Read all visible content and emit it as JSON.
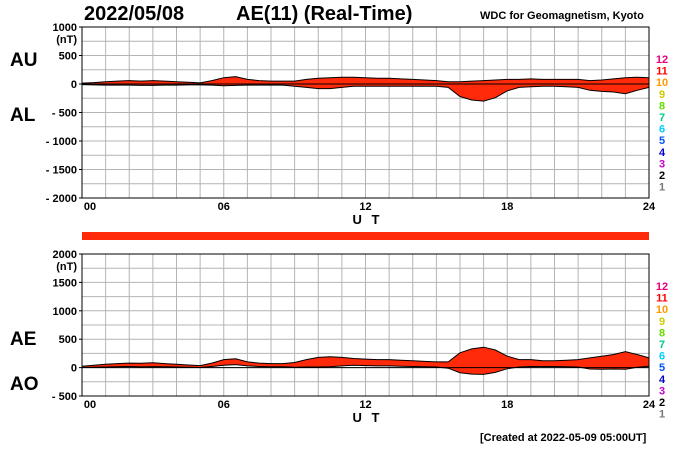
{
  "header": {
    "date": "2022/05/08",
    "title": "AE(11) (Real-Time)",
    "source": "WDC for Geomagnetism, Kyoto",
    "created": "[Created at 2022-05-09 05:00UT]"
  },
  "colors": {
    "fill": "#ff2a0a",
    "outline": "#000000",
    "grid": "#b4b4b4",
    "station_legend": [
      "#e6007e",
      "#ff0000",
      "#ff9900",
      "#cccc00",
      "#66dd00",
      "#00cc88",
      "#00ccff",
      "#0055ff",
      "#0000cc",
      "#cc00cc",
      "#000000",
      "#777777",
      "#cccccc"
    ]
  },
  "legend_stations": [
    "12",
    "11",
    "10",
    "9",
    "8",
    "7",
    "6",
    "5",
    "4",
    "3",
    "2",
    "1"
  ],
  "chart_data": [
    {
      "type": "area",
      "panel": "AU/AL",
      "series_labels": [
        "AU",
        "AL"
      ],
      "y_unit": "(nT)",
      "ylim": [
        -2000,
        1000
      ],
      "yticks": [
        1000,
        500,
        0,
        -500,
        -1000,
        -1500,
        -2000
      ],
      "ytick_labels": [
        "1000",
        "500",
        "0",
        "- 500",
        "- 1000",
        "- 1500",
        "- 2000"
      ],
      "xlim": [
        0,
        24
      ],
      "xticks": [
        0,
        6,
        12,
        18,
        24
      ],
      "xtick_labels": [
        "00",
        "06",
        "12",
        "18",
        "24"
      ],
      "xlabel": "U T",
      "grid": true,
      "x": [
        0,
        0.5,
        1,
        1.5,
        2,
        2.5,
        3,
        3.5,
        4,
        4.5,
        5,
        5.5,
        6,
        6.5,
        7,
        7.5,
        8,
        8.5,
        9,
        9.5,
        10,
        10.5,
        11,
        11.5,
        12,
        12.5,
        13,
        13.5,
        14,
        14.5,
        15,
        15.5,
        16,
        16.5,
        17,
        17.5,
        18,
        18.5,
        19,
        19.5,
        20,
        20.5,
        21,
        21.5,
        22,
        22.5,
        23,
        23.5,
        24
      ],
      "upper": [
        15,
        25,
        40,
        50,
        60,
        50,
        60,
        50,
        40,
        30,
        20,
        60,
        110,
        130,
        80,
        60,
        50,
        50,
        50,
        80,
        100,
        110,
        120,
        120,
        110,
        100,
        100,
        90,
        80,
        70,
        60,
        40,
        40,
        50,
        60,
        70,
        80,
        80,
        90,
        80,
        80,
        80,
        80,
        60,
        70,
        90,
        110,
        120,
        110
      ],
      "lower": [
        -10,
        -15,
        -20,
        -20,
        -20,
        -25,
        -25,
        -20,
        -20,
        -15,
        -15,
        -20,
        -30,
        -25,
        -20,
        -20,
        -20,
        -20,
        -40,
        -60,
        -80,
        -80,
        -60,
        -40,
        -40,
        -40,
        -40,
        -40,
        -40,
        -40,
        -40,
        -60,
        -220,
        -280,
        -300,
        -240,
        -120,
        -60,
        -50,
        -40,
        -40,
        -50,
        -60,
        -110,
        -130,
        -140,
        -170,
        -110,
        -60
      ]
    },
    {
      "type": "area",
      "panel": "AE/AO",
      "series_labels": [
        "AE",
        "AO"
      ],
      "y_unit": "(nT)",
      "ylim": [
        -500,
        2000
      ],
      "yticks": [
        2000,
        1500,
        1000,
        500,
        0,
        -500
      ],
      "ytick_labels": [
        "2000",
        "1500",
        "1000",
        "500",
        "0",
        "- 500"
      ],
      "xlim": [
        0,
        24
      ],
      "xticks": [
        0,
        6,
        12,
        18,
        24
      ],
      "xtick_labels": [
        "00",
        "06",
        "12",
        "18",
        "24"
      ],
      "xlabel": "U T",
      "grid": true,
      "x": [
        0,
        0.5,
        1,
        1.5,
        2,
        2.5,
        3,
        3.5,
        4,
        4.5,
        5,
        5.5,
        6,
        6.5,
        7,
        7.5,
        8,
        8.5,
        9,
        9.5,
        10,
        10.5,
        11,
        11.5,
        12,
        12.5,
        13,
        13.5,
        14,
        14.5,
        15,
        15.5,
        16,
        16.5,
        17,
        17.5,
        18,
        18.5,
        19,
        19.5,
        20,
        20.5,
        21,
        21.5,
        22,
        22.5,
        23,
        23.5,
        24
      ],
      "upper": [
        25,
        40,
        60,
        70,
        80,
        75,
        85,
        70,
        60,
        45,
        35,
        80,
        140,
        155,
        100,
        80,
        70,
        70,
        90,
        140,
        180,
        190,
        180,
        160,
        150,
        140,
        140,
        130,
        120,
        110,
        100,
        100,
        260,
        330,
        360,
        310,
        200,
        140,
        140,
        120,
        120,
        130,
        140,
        170,
        200,
        230,
        280,
        230,
        170
      ],
      "lower": [
        2,
        5,
        10,
        15,
        20,
        12,
        17,
        15,
        10,
        7,
        2,
        20,
        40,
        52,
        30,
        20,
        15,
        15,
        5,
        10,
        10,
        15,
        30,
        40,
        35,
        30,
        30,
        25,
        20,
        15,
        10,
        -10,
        -90,
        -115,
        -120,
        -85,
        -20,
        10,
        20,
        20,
        20,
        15,
        10,
        -25,
        -30,
        -25,
        -30,
        5,
        25
      ]
    }
  ]
}
